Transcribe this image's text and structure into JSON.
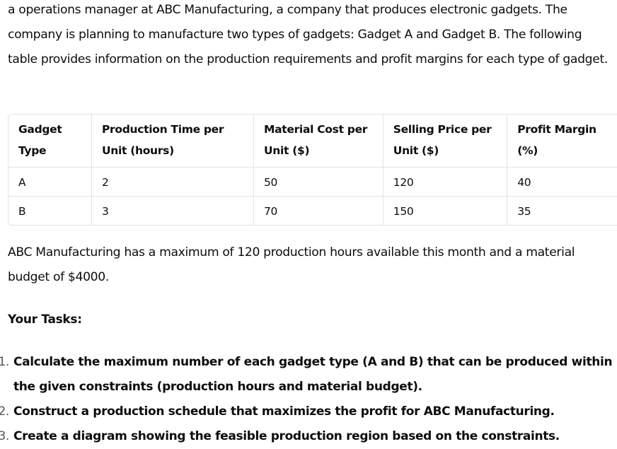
{
  "intro": "a operations manager at ABC Manufacturing, a company that produces electronic gadgets. The company is planning to manufacture two types of gadgets: Gadget A and Gadget B. The following table provides information on the production requirements and profit margins for each type of gadget.",
  "table": {
    "headers": [
      "Gadget Type",
      "Production Time per Unit (hours)",
      "Material Cost per Unit ($)",
      "Selling Price per Unit ($)",
      "Profit Margin (%)"
    ],
    "rows": [
      [
        "A",
        "2",
        "50",
        "120",
        "40"
      ],
      [
        "B",
        "3",
        "70",
        "150",
        "35"
      ]
    ]
  },
  "budget": "ABC Manufacturing has a maximum of 120 production hours available this month and a material budget of $4000.",
  "tasks_heading": "Your Tasks:",
  "tasks": [
    {
      "number": "1.",
      "text": "Calculate the maximum number of each gadget type (A and B) that can be produced within the given constraints (production hours and material budget)."
    },
    {
      "number": "2.",
      "text": "Construct a production schedule that maximizes the profit for ABC Manufacturing."
    },
    {
      "number": "3.",
      "text": "Create a diagram showing the feasible production region based on the constraints."
    }
  ]
}
